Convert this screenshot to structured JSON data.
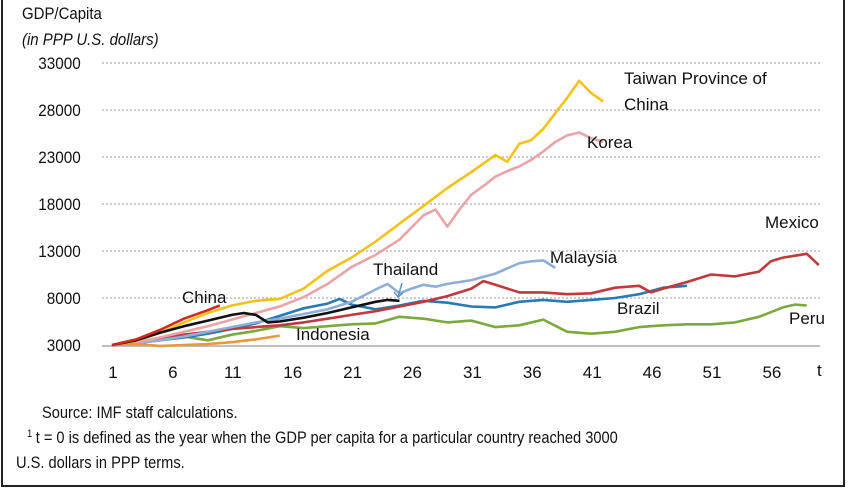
{
  "chart_data": {
    "type": "line",
    "title": "",
    "ylabel_line1": "GDP/Capita",
    "ylabel_line2": "(in PPP U.S. dollars)",
    "xlabel": "t",
    "ylim": [
      3000,
      33000
    ],
    "xlim": [
      1,
      60
    ],
    "y_ticks": [
      "33000",
      "28000",
      "23000",
      "18000",
      "13000",
      "8000",
      "3000"
    ],
    "y_tick_values": [
      33000,
      28000,
      23000,
      18000,
      13000,
      8000,
      3000
    ],
    "x_ticks": [
      "1",
      "6",
      "11",
      "16",
      "21",
      "26",
      "31",
      "36",
      "41",
      "46",
      "51",
      "56"
    ],
    "x_tick_values": [
      1,
      6,
      11,
      16,
      21,
      26,
      31,
      36,
      41,
      46,
      51,
      56
    ],
    "grid": true,
    "legend": "inline labels",
    "series": [
      {
        "name": "Taiwan Province of China",
        "color": "#f2c21b",
        "label_line1": "Taiwan Province of",
        "label_line2": "China",
        "x": [
          1,
          3,
          5,
          7,
          9,
          11,
          13,
          15,
          17,
          19,
          21,
          23,
          25,
          27,
          29,
          31,
          33,
          34,
          35,
          36,
          37,
          39,
          40,
          41,
          42
        ],
        "values": [
          3000,
          3400,
          4300,
          5400,
          6400,
          7200,
          7700,
          7900,
          9000,
          10900,
          12300,
          14000,
          15900,
          17800,
          19700,
          21400,
          23200,
          22500,
          24400,
          24800,
          26000,
          29300,
          31100,
          29800,
          28900
        ]
      },
      {
        "name": "Korea",
        "color": "#eaa3a6",
        "label_line1": "Korea",
        "x": [
          1,
          3,
          5,
          7,
          9,
          11,
          13,
          15,
          17,
          19,
          21,
          23,
          25,
          26,
          27,
          28,
          29,
          30,
          31,
          32,
          33,
          34,
          35,
          36,
          37,
          38,
          39,
          40,
          41,
          42
        ],
        "values": [
          3000,
          3300,
          3800,
          4400,
          5000,
          5700,
          6400,
          7100,
          8100,
          9500,
          11300,
          12600,
          14200,
          15500,
          16800,
          17400,
          15600,
          17400,
          19000,
          19900,
          20900,
          21500,
          22000,
          22700,
          23600,
          24600,
          25300,
          25600,
          25000,
          24600
        ]
      },
      {
        "name": "Mexico",
        "color": "#c0393d",
        "label_line1": "Mexico",
        "x": [
          1,
          3,
          5,
          7,
          9,
          11,
          13,
          15,
          17,
          19,
          21,
          23,
          25,
          27,
          29,
          31,
          32,
          33,
          35,
          37,
          39,
          41,
          43,
          45,
          46,
          47,
          49,
          51,
          53,
          55,
          56,
          57,
          58,
          59,
          60
        ],
        "values": [
          3000,
          3300,
          3700,
          4100,
          4400,
          4700,
          4900,
          5100,
          5400,
          5800,
          6200,
          6600,
          7100,
          7600,
          8200,
          9000,
          9800,
          9400,
          8600,
          8600,
          8400,
          8500,
          9100,
          9300,
          8600,
          9000,
          9700,
          10500,
          10300,
          10800,
          11900,
          12300,
          12500,
          12700,
          11500
        ]
      },
      {
        "name": "Malaysia",
        "color": "#8eaed6",
        "label_line1": "Malaysia",
        "x": [
          1,
          3,
          5,
          7,
          9,
          11,
          13,
          15,
          17,
          19,
          21,
          23,
          24,
          25,
          26,
          27,
          28,
          29,
          31,
          33,
          35,
          36,
          37,
          38
        ],
        "values": [
          3000,
          3200,
          3500,
          3900,
          4400,
          4900,
          5400,
          5800,
          6300,
          6800,
          7600,
          8900,
          9500,
          8500,
          9000,
          9400,
          9200,
          9500,
          9900,
          10600,
          11700,
          11900,
          12000,
          11200
        ]
      },
      {
        "name": "Brazil",
        "color": "#2a78b4",
        "label_line1": "Brazil",
        "x": [
          1,
          3,
          5,
          7,
          9,
          11,
          13,
          15,
          17,
          19,
          20,
          21,
          23,
          25,
          27,
          29,
          31,
          33,
          35,
          37,
          39,
          41,
          43,
          45,
          47,
          49
        ],
        "values": [
          3000,
          3200,
          3500,
          3800,
          4200,
          4700,
          5300,
          6100,
          6900,
          7400,
          7900,
          7300,
          6800,
          7200,
          7700,
          7500,
          7100,
          7000,
          7600,
          7800,
          7600,
          7800,
          8000,
          8400,
          9100,
          9300
        ]
      },
      {
        "name": "Peru",
        "color": "#7aaa3e",
        "label_line1": "Peru",
        "x": [
          1,
          3,
          5,
          7,
          9,
          11,
          13,
          15,
          17,
          19,
          21,
          23,
          25,
          27,
          29,
          31,
          33,
          35,
          37,
          39,
          41,
          43,
          45,
          47,
          49,
          51,
          53,
          55,
          57,
          58,
          59
        ],
        "values": [
          3000,
          3300,
          3600,
          3900,
          3500,
          4100,
          4500,
          5000,
          4800,
          5000,
          5200,
          5300,
          6000,
          5800,
          5400,
          5600,
          4900,
          5100,
          5700,
          4400,
          4200,
          4400,
          4900,
          5100,
          5200,
          5200,
          5400,
          6000,
          7000,
          7300,
          7200
        ]
      },
      {
        "name": "Thailand",
        "color": "#111111",
        "label_line1": "Thailand",
        "x": [
          1,
          3,
          5,
          7,
          9,
          11,
          12,
          13,
          14,
          15,
          17,
          19,
          21,
          23,
          24,
          25
        ],
        "values": [
          3000,
          3500,
          4300,
          5000,
          5600,
          6200,
          6400,
          6200,
          5400,
          5500,
          5900,
          6400,
          7000,
          7600,
          7800,
          7700
        ]
      },
      {
        "name": "China",
        "color": "#d12a22",
        "label_line1": "China",
        "x": [
          1,
          3,
          5,
          7,
          9,
          10
        ],
        "values": [
          3000,
          3600,
          4600,
          5800,
          6700,
          7200
        ]
      },
      {
        "name": "Indonesia",
        "color": "#f0963a",
        "label_line1": "Indonesia",
        "x": [
          1,
          3,
          5,
          7,
          9,
          11,
          13,
          15
        ],
        "values": [
          3000,
          3100,
          2900,
          3000,
          3100,
          3300,
          3600,
          4000
        ]
      }
    ]
  },
  "notes": {
    "source": "Source: IMF staff calculations.",
    "footnote_mark": "1",
    "footnote_line1": "t = 0 is defined as the year when the GDP per capita for a particular country reached 3000",
    "footnote_line2": "U.S. dollars in PPP terms."
  }
}
